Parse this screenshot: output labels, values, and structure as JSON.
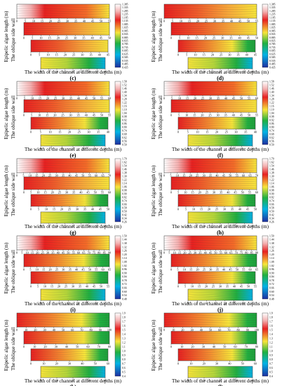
{
  "figure": {
    "panel_letters": [
      "(c)",
      "(d)",
      "(e)",
      "(f)",
      "(g)",
      "(h)",
      "(i)",
      "(j)",
      "(k)",
      "(l)"
    ],
    "ylabel_outer": "Epipelic algae length (m)",
    "ylabel_inner": "The oblique side wall",
    "xlabel": "The width of the channel at different depths (m)",
    "colors": {
      "scale_low": "#1e2fa0",
      "scale_mid_low": "#00b3e6",
      "scale_mid": "#20b040",
      "scale_mid_high": "#f7e53a",
      "scale_high": "#e82020",
      "scale_top": "#ffffff"
    }
  },
  "chart_data": [
    {
      "type": "heatmap",
      "panel": "(c)",
      "colorbar_ticks": [
        "1.385",
        "1.335",
        "1.285",
        "1.235",
        "1.185",
        "1.135",
        "1.085",
        "1.035",
        "0.985",
        "0.935",
        "0.885",
        "0.835",
        "0.785",
        "0.735",
        "0.685",
        "0.635",
        "0.585",
        "0.535",
        "0.485",
        "0.435"
      ],
      "strips": [
        {
          "ticks": [
            "0",
            "5",
            "10",
            "15",
            "20",
            "25",
            "30",
            "35",
            "40",
            "45",
            "50",
            "55"
          ]
        },
        {
          "ticks": [
            "0",
            "5",
            "10",
            "15",
            "20",
            "25",
            "30",
            "35",
            "40",
            "45",
            "50"
          ]
        },
        {
          "ticks": [
            "0",
            "5",
            "10",
            "15",
            "20",
            "25",
            "30",
            "35",
            "40",
            "45"
          ]
        },
        {
          "ticks": [
            "0",
            "5",
            "10",
            "15",
            "20",
            "25",
            "30",
            "35",
            "40"
          ]
        }
      ]
    },
    {
      "type": "heatmap",
      "panel": "(d)",
      "colorbar_ticks": [
        "1.385",
        "1.335",
        "1.285",
        "1.235",
        "1.185",
        "1.135",
        "1.085",
        "1.035",
        "0.985",
        "0.935",
        "0.885",
        "0.835",
        "0.785",
        "0.735",
        "0.685",
        "0.635",
        "0.585",
        "0.535",
        "0.485",
        "0.435"
      ],
      "strips": [
        {
          "ticks": [
            "0",
            "5",
            "10",
            "15",
            "20",
            "25",
            "30",
            "35",
            "40",
            "45",
            "50",
            "55"
          ]
        },
        {
          "ticks": [
            "0",
            "5",
            "10",
            "15",
            "20",
            "25",
            "30",
            "35",
            "40",
            "45",
            "50"
          ]
        },
        {
          "ticks": [
            "0",
            "5",
            "10",
            "15",
            "20",
            "25",
            "30",
            "35",
            "40",
            "45"
          ]
        },
        {
          "ticks": [
            "0",
            "5",
            "10",
            "15",
            "20",
            "25",
            "30",
            "35",
            "40"
          ]
        }
      ]
    },
    {
      "type": "heatmap",
      "panel": "(e)",
      "colorbar_ticks": [
        "1.58",
        "1.52",
        "1.46",
        "1.40",
        "1.34",
        "1.28",
        "1.22",
        "1.16",
        "1.10",
        "1.04",
        "0.98",
        "0.92",
        "0.86",
        "0.80",
        "0.74",
        "0.68",
        "0.62",
        "0.56",
        "0.50"
      ],
      "strips": [
        {
          "ticks": [
            "0",
            "5",
            "10",
            "15",
            "20",
            "25",
            "30",
            "35",
            "40",
            "45",
            "50",
            "55",
            "60"
          ]
        },
        {
          "ticks": [
            "0",
            "5",
            "10",
            "15",
            "20",
            "25",
            "30",
            "35",
            "40",
            "45",
            "50",
            "55"
          ]
        },
        {
          "ticks": [
            "0",
            "5",
            "10",
            "15",
            "20",
            "25",
            "30",
            "35",
            "40"
          ]
        },
        {
          "ticks": [
            "0",
            "5",
            "10",
            "15",
            "20",
            "25",
            "30"
          ]
        }
      ]
    },
    {
      "type": "heatmap",
      "panel": "(f)",
      "colorbar_ticks": [
        "1.58",
        "1.52",
        "1.46",
        "1.40",
        "1.34",
        "1.28",
        "1.22",
        "1.16",
        "1.10",
        "1.04",
        "0.98",
        "0.92",
        "0.86",
        "0.80",
        "0.74",
        "0.68",
        "0.62",
        "0.56",
        "0.50"
      ],
      "strips": [
        {
          "ticks": [
            "0",
            "5",
            "10",
            "15",
            "20",
            "25",
            "30",
            "35",
            "40",
            "45",
            "50",
            "55",
            "60"
          ]
        },
        {
          "ticks": [
            "0",
            "5",
            "10",
            "15",
            "20",
            "25",
            "30",
            "35",
            "40",
            "45",
            "50",
            "55"
          ]
        },
        {
          "ticks": [
            "0",
            "5",
            "10",
            "15",
            "20",
            "25",
            "30",
            "35",
            "40"
          ]
        },
        {
          "ticks": [
            "0",
            "5",
            "10",
            "15",
            "20",
            "25",
            "30"
          ]
        }
      ]
    },
    {
      "type": "heatmap",
      "panel": "(g)",
      "colorbar_ticks": [
        "1.70",
        "1.62",
        "1.54",
        "1.46",
        "1.38",
        "1.30",
        "1.22",
        "1.14",
        "1.06",
        "0.98",
        "0.90",
        "0.82",
        "0.74",
        "0.66",
        "0.58",
        "0.50",
        "0.42",
        "0.34",
        "0.26"
      ],
      "strips": [
        {
          "ticks": [
            "0",
            "5",
            "10",
            "15",
            "20",
            "25",
            "30",
            "35",
            "40",
            "45",
            "50",
            "55",
            "60",
            "65",
            "70"
          ]
        },
        {
          "ticks": [
            "0",
            "5",
            "10",
            "15",
            "20",
            "25",
            "30",
            "35",
            "40",
            "45",
            "50",
            "55",
            "60"
          ]
        },
        {
          "ticks": [
            "0",
            "5",
            "10",
            "15",
            "20",
            "25",
            "30",
            "35",
            "40",
            "45",
            "50"
          ]
        },
        {
          "ticks": [
            "0",
            "5",
            "10",
            "15",
            "20",
            "25",
            "30",
            "35",
            "40"
          ]
        }
      ]
    },
    {
      "type": "heatmap",
      "panel": "(h)",
      "colorbar_ticks": [
        "1.70",
        "1.62",
        "1.54",
        "1.46",
        "1.38",
        "1.30",
        "1.22",
        "1.14",
        "1.06",
        "0.98",
        "0.90",
        "0.82",
        "0.74",
        "0.66",
        "0.58",
        "0.50",
        "0.42",
        "0.34",
        "0.26"
      ],
      "strips": [
        {
          "ticks": [
            "0",
            "5",
            "10",
            "15",
            "20",
            "25",
            "30",
            "35",
            "40",
            "45",
            "50",
            "55",
            "60",
            "65",
            "70"
          ]
        },
        {
          "ticks": [
            "0",
            "5",
            "10",
            "15",
            "20",
            "25",
            "30",
            "35",
            "40",
            "45",
            "50",
            "55",
            "60"
          ]
        },
        {
          "ticks": [
            "0",
            "5",
            "10",
            "15",
            "20",
            "25",
            "30",
            "35",
            "40",
            "45",
            "50"
          ]
        },
        {
          "ticks": [
            "0",
            "5",
            "10",
            "15",
            "20",
            "25",
            "30",
            "35",
            "40"
          ]
        }
      ]
    },
    {
      "type": "heatmap",
      "panel": "(i)",
      "colorbar_ticks": [
        "1.50",
        "1.44",
        "1.38",
        "1.32",
        "1.26",
        "1.20",
        "1.14",
        "1.08",
        "1.02",
        "0.96",
        "0.90",
        "0.84",
        "0.78",
        "0.72",
        "0.66",
        "0.60",
        "0.54",
        "0.48"
      ],
      "strips": [
        {
          "ticks": [
            "0",
            "5",
            "10",
            "15",
            "20",
            "25",
            "30",
            "35",
            "40",
            "45",
            "50",
            "55",
            "60",
            "65",
            "70",
            "75",
            "80",
            "85",
            "90"
          ]
        },
        {
          "ticks": [
            "0",
            "5",
            "10",
            "15",
            "20",
            "25",
            "30",
            "35",
            "40",
            "45",
            "50",
            "55",
            "60",
            "65"
          ]
        },
        {
          "ticks": [
            "0",
            "5",
            "10",
            "15",
            "20",
            "25",
            "30",
            "35",
            "40",
            "45",
            "50",
            "55"
          ]
        },
        {
          "ticks": [
            "0",
            "5",
            "10",
            "15",
            "20",
            "25",
            "30",
            "35"
          ]
        }
      ]
    },
    {
      "type": "heatmap",
      "panel": "(j)",
      "colorbar_ticks": [
        "1.50",
        "1.44",
        "1.38",
        "1.32",
        "1.26",
        "1.20",
        "1.14",
        "1.08",
        "1.02",
        "0.96",
        "0.90",
        "0.84",
        "0.78",
        "0.72",
        "0.66",
        "0.60",
        "0.54",
        "0.48"
      ],
      "strips": [
        {
          "ticks": [
            "0",
            "5",
            "10",
            "15",
            "20",
            "25",
            "30",
            "35",
            "40",
            "45",
            "50",
            "55",
            "60",
            "65",
            "70",
            "75",
            "80",
            "85",
            "90"
          ]
        },
        {
          "ticks": [
            "0",
            "5",
            "10",
            "15",
            "20",
            "25",
            "30",
            "35",
            "40",
            "45",
            "50",
            "55",
            "60",
            "65"
          ]
        },
        {
          "ticks": [
            "0",
            "5",
            "10",
            "15",
            "20",
            "25",
            "30",
            "35",
            "40",
            "45",
            "50",
            "55"
          ]
        },
        {
          "ticks": [
            "0",
            "5",
            "10",
            "15",
            "20",
            "25",
            "30",
            "35"
          ]
        }
      ]
    },
    {
      "type": "heatmap",
      "panel": "(k)",
      "colorbar_ticks": [
        "1.9",
        "1.8",
        "1.7",
        "1.6",
        "1.5",
        "1.4",
        "1.3",
        "1.2",
        "1.1",
        "1.0",
        "0.9",
        "0.8",
        "0.7",
        "0.6",
        "0.5",
        "0.4"
      ],
      "strips": [
        {
          "ticks": [
            "0",
            "10",
            "20",
            "30",
            "40",
            "50",
            "60",
            "70",
            "80",
            "90",
            "100"
          ]
        },
        {
          "ticks": [
            "0",
            "10",
            "20",
            "30",
            "40",
            "50",
            "60",
            "70",
            "80"
          ]
        },
        {
          "ticks": [
            "0",
            "10",
            "20",
            "30",
            "40",
            "50",
            "60"
          ]
        },
        {
          "ticks": [
            "0",
            "10",
            "20",
            "30",
            "40"
          ]
        }
      ]
    },
    {
      "type": "heatmap",
      "panel": "(l)",
      "colorbar_ticks": [
        "1.9",
        "1.8",
        "1.7",
        "1.6",
        "1.5",
        "1.4",
        "1.3",
        "1.2",
        "1.1",
        "1.0",
        "0.9",
        "0.8",
        "0.7",
        "0.6",
        "0.5",
        "0.4"
      ],
      "strips": [
        {
          "ticks": [
            "0",
            "10",
            "20",
            "30",
            "40",
            "50",
            "60",
            "70",
            "80",
            "90",
            "100"
          ]
        },
        {
          "ticks": [
            "0",
            "10",
            "20",
            "30",
            "40",
            "50",
            "60",
            "70",
            "80"
          ]
        },
        {
          "ticks": [
            "0",
            "10",
            "20",
            "30",
            "40",
            "50",
            "60"
          ]
        },
        {
          "ticks": [
            "0",
            "10",
            "20",
            "30",
            "40"
          ]
        }
      ]
    }
  ]
}
